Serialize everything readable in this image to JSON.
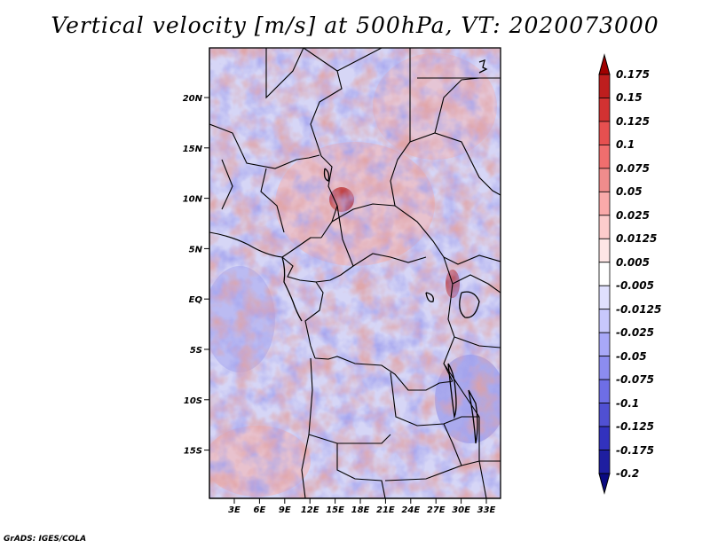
{
  "title": "Vertical velocity [m/s] at 500hPa, VT: 2020073000",
  "credit": "GrADS: IGES/COLA",
  "map": {
    "lat_ticks": [
      "20N",
      "15N",
      "10N",
      "5N",
      "EQ",
      "5S",
      "10S",
      "15S"
    ],
    "lon_ticks": [
      "3E",
      "6E",
      "9E",
      "12E",
      "15E",
      "18E",
      "21E",
      "24E",
      "27E",
      "30E",
      "33E"
    ]
  },
  "colorbar": {
    "labels": [
      "0.175",
      "0.15",
      "0.125",
      "0.1",
      "0.075",
      "0.05",
      "0.025",
      "0.0125",
      "0.005",
      "-0.005",
      "-0.0125",
      "-0.025",
      "-0.05",
      "-0.075",
      "-0.1",
      "-0.125",
      "-0.175",
      "-0.2"
    ],
    "colors": [
      "#a00000",
      "#be1e1e",
      "#d23232",
      "#e65050",
      "#f06e6e",
      "#f08c8c",
      "#faaaaa",
      "#fccccc",
      "#fee6e6",
      "#ffffff",
      "#e0e0fe",
      "#c8c8fc",
      "#a8a8f8",
      "#8c8cf0",
      "#6e6ee6",
      "#5050d2",
      "#3232be",
      "#1e1ea0",
      "#0a0a82"
    ]
  }
}
